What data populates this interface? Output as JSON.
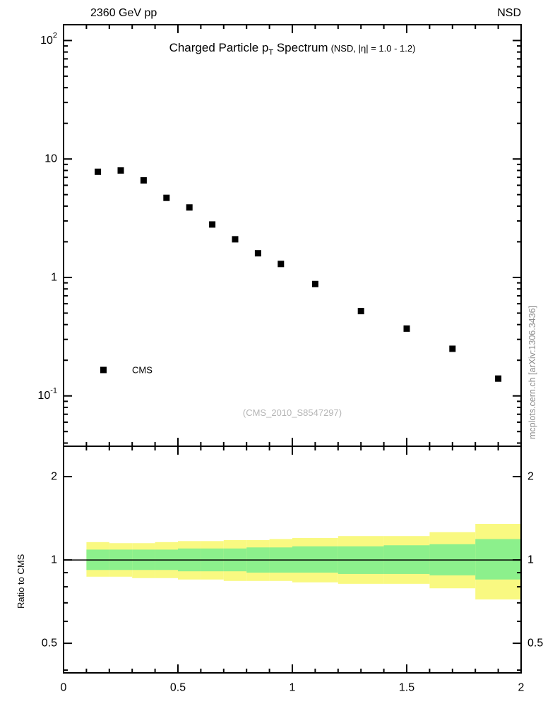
{
  "header": {
    "left": "2360 GeV pp",
    "right": "NSD"
  },
  "title": {
    "pre": "Charged Particle p",
    "sub": "T",
    "post": " Spectrum",
    "paren": "(NSD, |η| = 1.0 - 1.2)"
  },
  "watermark": "(CMS_2010_S8547297)",
  "side_label": "mcplots.cern.ch [arXiv:1306.3436]",
  "chart_data": {
    "type": "scatter",
    "title": "Charged Particle pT Spectrum (NSD, |eta| = 1.0 - 1.2)",
    "beam": "2360 GeV pp",
    "condition": "NSD",
    "xlim": [
      0,
      2
    ],
    "xticks": [
      0,
      0.5,
      1,
      1.5,
      2
    ],
    "x_minor_step": 0.1,
    "ylog": true,
    "ylim": [
      0.0376,
      136
    ],
    "ytick_exponents": [
      -1,
      0,
      1,
      2
    ],
    "series": [
      {
        "name": "CMS",
        "marker": "filled-square",
        "color": "#000000",
        "x": [
          0.15,
          0.25,
          0.35,
          0.45,
          0.55,
          0.65,
          0.75,
          0.85,
          0.95,
          1.1,
          1.3,
          1.5,
          1.7,
          1.9
        ],
        "y": [
          7.8,
          8.0,
          6.6,
          4.7,
          3.9,
          2.8,
          2.1,
          1.6,
          1.3,
          0.88,
          0.52,
          0.37,
          0.25,
          0.14
        ]
      }
    ],
    "ratio": {
      "ylabel": "Ratio to CMS",
      "ylog": true,
      "ylim": [
        0.391,
        2.575
      ],
      "yticks": [
        0.5,
        1,
        2
      ],
      "yminor": [
        0.4,
        0.6,
        0.7,
        0.8,
        0.9
      ],
      "reference_line": 1,
      "bin_edges": [
        0.1,
        0.2,
        0.3,
        0.4,
        0.5,
        0.6,
        0.7,
        0.8,
        0.9,
        1.0,
        1.2,
        1.4,
        1.6,
        1.8,
        2.0
      ],
      "bands": {
        "yellow": {
          "color": "#f9f981",
          "lo": [
            0.87,
            0.87,
            0.86,
            0.86,
            0.85,
            0.85,
            0.84,
            0.84,
            0.84,
            0.83,
            0.82,
            0.82,
            0.79,
            0.72
          ],
          "hi": [
            1.16,
            1.15,
            1.15,
            1.16,
            1.17,
            1.17,
            1.18,
            1.18,
            1.19,
            1.2,
            1.22,
            1.22,
            1.26,
            1.35
          ]
        },
        "green": {
          "color": "#8cf08c",
          "lo": [
            0.92,
            0.92,
            0.92,
            0.92,
            0.91,
            0.91,
            0.91,
            0.9,
            0.9,
            0.9,
            0.89,
            0.89,
            0.88,
            0.85
          ],
          "hi": [
            1.09,
            1.09,
            1.09,
            1.09,
            1.1,
            1.1,
            1.1,
            1.11,
            1.11,
            1.12,
            1.12,
            1.13,
            1.14,
            1.19
          ]
        }
      }
    }
  }
}
